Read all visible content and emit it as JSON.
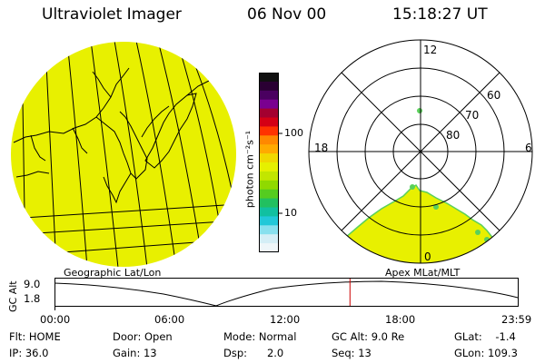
{
  "header": {
    "instrument": "Ultraviolet Imager",
    "date": "06 Nov 00",
    "time": "15:18:27 UT"
  },
  "colorbar": {
    "unit_label": "photon cm⁻²s⁻¹",
    "ticks": [
      "100",
      "10"
    ],
    "colors": [
      "#111111",
      "#2a0033",
      "#4a0060",
      "#7a0090",
      "#a30030",
      "#d40015",
      "#ff3300",
      "#ff8800",
      "#ffaa00",
      "#f0d800",
      "#e6f000",
      "#c2e600",
      "#90d900",
      "#55cc20",
      "#22c060",
      "#11c0a0",
      "#22c8d8",
      "#88e0ee",
      "#d4eef6",
      "#eef6f9"
    ]
  },
  "geo_panel": {
    "caption": "Geographic Lat/Lon",
    "fill": "#e8f000"
  },
  "polar_panel": {
    "caption": "Apex MLat/MLT",
    "lat_labels": [
      "60",
      "70",
      "80"
    ],
    "mlt_labels": {
      "top": "12",
      "left": "18",
      "right": "6",
      "bottom": "0"
    },
    "fill": "#e8f000"
  },
  "orbit": {
    "ylabel": "GC Alt",
    "y_ticks": [
      "9.0",
      "1.8"
    ],
    "x_ticks": [
      "00:00",
      "06:00",
      "12:00",
      "18:00",
      "23:59"
    ],
    "marker_color": "#cc0000",
    "marker_time_hours": 15.31
  },
  "status": {
    "flt": "Flt: HOME",
    "ip": "IP: 36.0",
    "door": "Door: Open",
    "gain": "Gain: 13",
    "mode": "Mode: Normal",
    "dsp": "Dsp:      2.0",
    "gcalt": "GC Alt: 9.0 Re",
    "seq": "Seq: 13",
    "glat": "GLat:    -1.4",
    "glon": "GLon: 109.3"
  }
}
